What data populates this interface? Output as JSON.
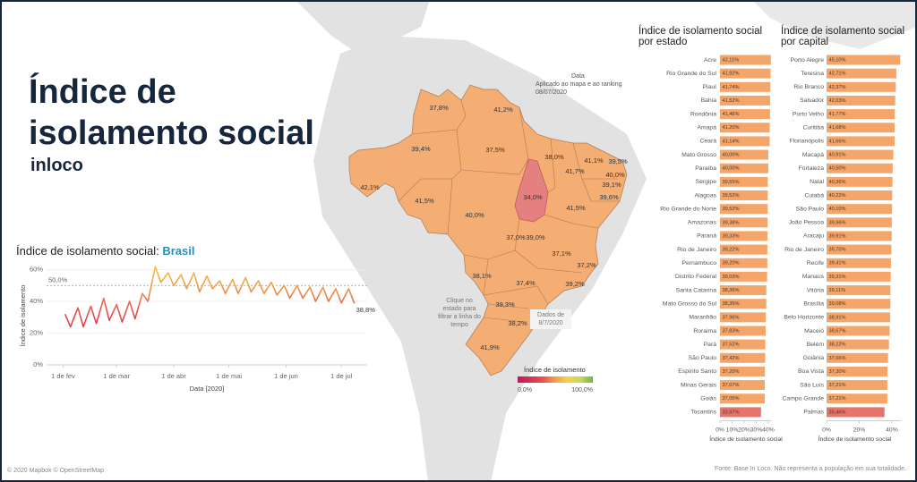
{
  "header": {
    "title": "Índice de isolamento social",
    "subtitle": "inloco"
  },
  "map": {
    "labels": [
      "37,8%",
      "41,2%",
      "39,4%",
      "37,5%",
      "38,0%",
      "41,1%",
      "39,5%",
      "41,7%",
      "40,0%",
      "39,1%",
      "39,6%",
      "42,1%",
      "41,5%",
      "34,0%",
      "40,0%",
      "41,5%",
      "37,0%",
      "39,0%",
      "37,1%",
      "37,2%",
      "38,1%",
      "37,4%",
      "39,2%",
      "39,3%",
      "38,2%",
      "41,9%"
    ],
    "date_title": "Data",
    "date_note": "Aplicado ao mapa e ao ranking",
    "date": "08/07/2020",
    "click_note": "Clique no estado para filtrar a linha do tempo",
    "data_note": "Dados de 8/7/2020",
    "legend": {
      "title": "Índice de isolamento",
      "min": {
        "value": 0,
        "label": "0,0%"
      },
      "max": {
        "value": 100,
        "label": "100,0%"
      },
      "colors": [
        "#c2185b",
        "#d9304f",
        "#e8504f",
        "#f0a04b",
        "#f5d24a",
        "#c9d95a",
        "#6fb551"
      ]
    }
  },
  "chart_data": [
    {
      "type": "line",
      "title": "Índice de isolamento social:",
      "title_highlight": "Brasil",
      "x": [
        "2020-02-02",
        "2020-02-05",
        "2020-02-09",
        "2020-02-12",
        "2020-02-16",
        "2020-02-19",
        "2020-02-23",
        "2020-02-26",
        "2020-03-01",
        "2020-03-04",
        "2020-03-08",
        "2020-03-11",
        "2020-03-15",
        "2020-03-18",
        "2020-03-22",
        "2020-03-25",
        "2020-03-29",
        "2020-04-01",
        "2020-04-05",
        "2020-04-08",
        "2020-04-12",
        "2020-04-15",
        "2020-04-19",
        "2020-04-22",
        "2020-04-26",
        "2020-04-29",
        "2020-05-03",
        "2020-05-06",
        "2020-05-10",
        "2020-05-13",
        "2020-05-17",
        "2020-05-20",
        "2020-05-24",
        "2020-05-27",
        "2020-05-31",
        "2020-06-03",
        "2020-06-07",
        "2020-06-10",
        "2020-06-14",
        "2020-06-17",
        "2020-06-21",
        "2020-06-24",
        "2020-06-28",
        "2020-07-01",
        "2020-07-05",
        "2020-07-08"
      ],
      "values": [
        32,
        24,
        36,
        24,
        37,
        26,
        42,
        28,
        38,
        27,
        40,
        29,
        45,
        40,
        62,
        52,
        58,
        50,
        57,
        48,
        58,
        46,
        56,
        48,
        53,
        45,
        54,
        45,
        55,
        46,
        53,
        45,
        52,
        44,
        50,
        42,
        50,
        42,
        49,
        40,
        49,
        40,
        48,
        39,
        48,
        38.8
      ],
      "end_label": "38,8%",
      "xlim": [
        "2020-01-23",
        "2020-07-15"
      ],
      "xticks": [
        {
          "value": "2020-02-01",
          "label": "1 de fev"
        },
        {
          "value": "2020-03-01",
          "label": "1 de mar"
        },
        {
          "value": "2020-04-01",
          "label": "1 de abr"
        },
        {
          "value": "2020-05-01",
          "label": "1 de mai"
        },
        {
          "value": "2020-06-01",
          "label": "1 de jun"
        },
        {
          "value": "2020-07-01",
          "label": "1 de jul"
        }
      ],
      "ylim": [
        0,
        62
      ],
      "yticks": [
        {
          "value": 0,
          "label": "0%"
        },
        {
          "value": 20,
          "label": "20%"
        },
        {
          "value": 40,
          "label": "40%"
        },
        {
          "value": 60,
          "label": "60%"
        }
      ],
      "grid": true,
      "reference_line": {
        "value": 50,
        "label": "50,0%"
      },
      "x_label": "Data [2020]",
      "y_label": "Índice de isolamento"
    },
    {
      "type": "bar",
      "orientation": "horizontal",
      "title": "Índice de isolamento social por estado",
      "categories": [
        "Acre",
        "Rio Grande do Sul",
        "Piauí",
        "Bahia",
        "Rondônia",
        "Amapá",
        "Ceará",
        "Mato Grosso",
        "Paraíba",
        "Sergipe",
        "Alagoas",
        "Rio Grande do Norte",
        "Amazonas",
        "Paraná",
        "Rio de Janeiro",
        "Pernambuco",
        "Distrito Federal",
        "Santa Catarina",
        "Mato Grosso do Sul",
        "Maranhão",
        "Roraima",
        "Pará",
        "São Paulo",
        "Espírito Santo",
        "Minas Gerais",
        "Goiás",
        "Tocantins"
      ],
      "values": [
        42.11,
        41.92,
        41.74,
        41.52,
        41.46,
        41.2,
        41.14,
        40.0,
        40.0,
        39.55,
        39.52,
        39.52,
        39.38,
        39.33,
        39.22,
        39.2,
        39.03,
        38.36,
        38.35,
        37.96,
        37.83,
        37.52,
        37.42,
        37.2,
        37.07,
        37.05,
        33.97
      ],
      "value_labels": [
        "42,11%",
        "41,92%",
        "41,74%",
        "41,52%",
        "41,46%",
        "41,20%",
        "41,14%",
        "40,00%",
        "40,00%",
        "39,55%",
        "39,52%",
        "39,52%",
        "39,38%",
        "39,33%",
        "39,22%",
        "39,20%",
        "39,03%",
        "38,36%",
        "38,35%",
        "37,96%",
        "37,83%",
        "37,52%",
        "37,42%",
        "37,20%",
        "37,07%",
        "37,05%",
        "33,97%"
      ],
      "colors": [
        "#f4a66a",
        "#f4a66a",
        "#f4a66a",
        "#f4a66a",
        "#f4a66a",
        "#f4a66a",
        "#f4a66a",
        "#f4a66a",
        "#f4a66a",
        "#f4a66a",
        "#f4a66a",
        "#f4a66a",
        "#f4a66a",
        "#f4a66a",
        "#f4a66a",
        "#f4a66a",
        "#f4a66a",
        "#f4a66a",
        "#f4a66a",
        "#f4a66a",
        "#f4a66a",
        "#f4a66a",
        "#f4a66a",
        "#f4a66a",
        "#f4a66a",
        "#f4a66a",
        "#e8736b"
      ],
      "xlim": [
        0,
        43
      ],
      "xticks": [
        {
          "value": 0,
          "label": "0%"
        },
        {
          "value": 10,
          "label": "10%"
        },
        {
          "value": 20,
          "label": "20%"
        },
        {
          "value": 30,
          "label": "30%"
        },
        {
          "value": 40,
          "label": "40%"
        }
      ],
      "x_label": "Índice de isolamento social"
    },
    {
      "type": "bar",
      "orientation": "horizontal",
      "title": "Índice de isolamento social por capital",
      "categories": [
        "Porto Alegre",
        "Teresina",
        "Rio Branco",
        "Salvador",
        "Porto Velho",
        "Curitiba",
        "Florianópolis",
        "Macapá",
        "Fortaleza",
        "Natal",
        "Cuiabá",
        "São Paulo",
        "João Pessoa",
        "Aracaju",
        "Rio de Janeiro",
        "Recife",
        "Manaus",
        "Vitória",
        "Brasília",
        "Belo Horizonte",
        "Maceió",
        "Belém",
        "Goiânia",
        "Boa Vista",
        "São Luís",
        "Campo Grande",
        "Palmas"
      ],
      "values": [
        45.1,
        42.71,
        42.37,
        42.03,
        41.77,
        41.68,
        41.66,
        40.91,
        40.5,
        40.36,
        40.22,
        40.1,
        39.96,
        39.91,
        39.7,
        39.41,
        39.31,
        39.11,
        39.08,
        38.91,
        38.67,
        38.22,
        37.66,
        37.3,
        37.21,
        37.21,
        35.46
      ],
      "value_labels": [
        "45,10%",
        "42,71%",
        "42,37%",
        "42,03%",
        "41,77%",
        "41,68%",
        "41,66%",
        "40,91%",
        "40,50%",
        "40,36%",
        "40,22%",
        "40,10%",
        "39,96%",
        "39,91%",
        "39,70%",
        "39,41%",
        "39,31%",
        "39,11%",
        "39,08%",
        "38,91%",
        "38,67%",
        "38,22%",
        "37,66%",
        "37,30%",
        "37,21%",
        "37,21%",
        "35,46%"
      ],
      "colors": [
        "#f4a66a",
        "#f4a66a",
        "#f4a66a",
        "#f4a66a",
        "#f4a66a",
        "#f4a66a",
        "#f4a66a",
        "#f4a66a",
        "#f4a66a",
        "#f4a66a",
        "#f4a66a",
        "#f4a66a",
        "#f4a66a",
        "#f4a66a",
        "#f4a66a",
        "#f4a66a",
        "#f4a66a",
        "#f4a66a",
        "#f4a66a",
        "#f4a66a",
        "#f4a66a",
        "#f4a66a",
        "#f4a66a",
        "#f4a66a",
        "#f4a66a",
        "#f4a66a",
        "#e8736b"
      ],
      "xlim": [
        0,
        45.5
      ],
      "xticks": [
        {
          "value": 0,
          "label": "0%"
        },
        {
          "value": 20,
          "label": "20%"
        },
        {
          "value": 40,
          "label": "40%"
        }
      ],
      "x_label": "Índice de isolamento social"
    }
  ],
  "footer": {
    "left": "© 2020 Mapbox © OpenStreetMap",
    "right": "Fonte: Base In Loco. Não representa a população em sua totalidade."
  }
}
